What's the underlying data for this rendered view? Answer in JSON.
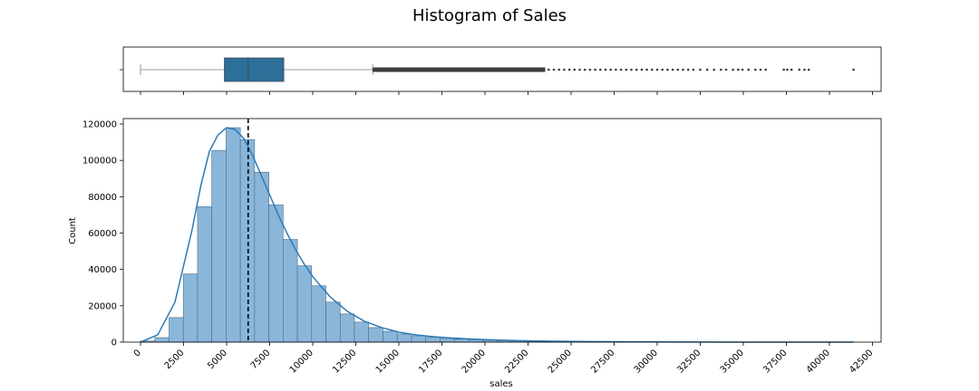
{
  "figure": {
    "title": "Histogram of Sales"
  },
  "chart_data": [
    {
      "type": "box",
      "orientation": "horizontal",
      "variable": "sales",
      "xlim": [
        -1000,
        43000
      ],
      "stats": {
        "min": 0,
        "q1": 4870,
        "median": 6250,
        "q3": 8320,
        "whisker_high": 13480
      },
      "outliers_dense_range": [
        13480,
        23500
      ],
      "outliers_sparse": [
        23700,
        24000,
        24300,
        24600,
        24900,
        25200,
        25500,
        25800,
        26100,
        26400,
        26700,
        27000,
        27300,
        27600,
        27900,
        28200,
        28500,
        28800,
        29100,
        29400,
        29700,
        30000,
        30300,
        30600,
        30900,
        31200,
        31500,
        31800,
        32100,
        32500,
        32900,
        33300,
        33700,
        34000,
        34400,
        34700,
        34950,
        35300,
        35700,
        36000,
        36300,
        37350,
        37550,
        37800,
        38250,
        38550,
        38800,
        41400
      ],
      "colors": {
        "box": "#2e6f99",
        "outliers": "#3d3d3d",
        "whisker": "#808080"
      }
    },
    {
      "type": "histogram",
      "xlabel": "sales",
      "ylabel": "Count",
      "xlim": [
        -1000,
        43000
      ],
      "ylim": [
        0,
        123000
      ],
      "bin_start": 0,
      "bin_width": 828,
      "counts": [
        600,
        2500,
        13500,
        37500,
        74500,
        105500,
        118000,
        111500,
        93500,
        75500,
        56500,
        42000,
        31000,
        22000,
        15500,
        11000,
        8000,
        6000,
        4500,
        3500,
        2600,
        2000,
        1600,
        1300,
        1000,
        800,
        600,
        500,
        400,
        300,
        250,
        200,
        160,
        130,
        100,
        80,
        60,
        50,
        40,
        30,
        20,
        15,
        10,
        8,
        5,
        5,
        3,
        3,
        2,
        2
      ],
      "kde_x": [
        0,
        1000,
        2000,
        3000,
        3500,
        4000,
        4500,
        5000,
        5500,
        6000,
        6500,
        7000,
        7500,
        8000,
        8500,
        9000,
        9500,
        10000,
        11000,
        12000,
        13000,
        14000,
        15000,
        16000,
        17000,
        18000,
        19000,
        20000,
        22000,
        24000,
        26000,
        30000,
        35000,
        41400
      ],
      "kde_y": [
        0,
        4000,
        22000,
        62000,
        86000,
        105000,
        114000,
        118000,
        117000,
        112000,
        103000,
        92000,
        81000,
        70000,
        60000,
        51000,
        43000,
        36000,
        25000,
        17000,
        11500,
        8000,
        5500,
        4000,
        3000,
        2300,
        1800,
        1400,
        800,
        500,
        300,
        100,
        30,
        0
      ],
      "mean_line": 6250,
      "x_ticks": [
        0,
        2500,
        5000,
        7500,
        10000,
        12500,
        15000,
        17500,
        20000,
        22500,
        25000,
        27500,
        30000,
        32500,
        35000,
        37500,
        40000,
        42500
      ],
      "y_ticks": [
        0,
        20000,
        40000,
        60000,
        80000,
        100000,
        120000
      ],
      "colors": {
        "bar_fill": "#8ab6d9",
        "bar_edge": "#4a6d87",
        "kde": "#2e7bb4",
        "mean_line": "#000000"
      }
    }
  ]
}
